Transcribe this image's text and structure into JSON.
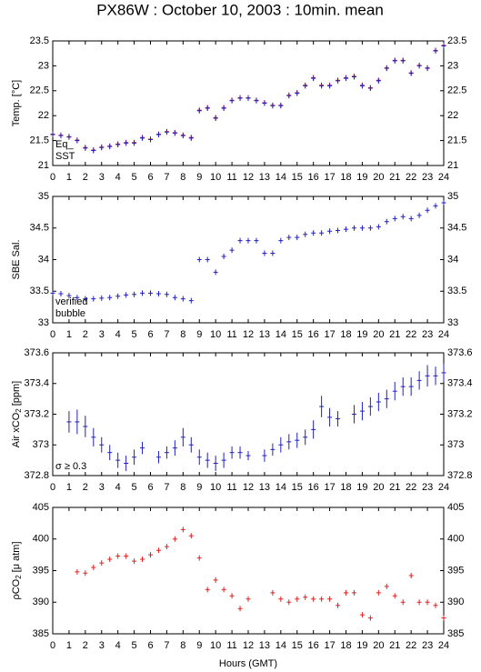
{
  "title": "PX86W : October 10, 2003 : 10min. mean",
  "x_label": "Hours (GMT)",
  "chart_data": [
    {
      "type": "scatter",
      "y_label": "Temp. [°C]",
      "legend": "lower left",
      "x": [
        0,
        0.5,
        1,
        1.5,
        2,
        2.5,
        3,
        3.5,
        4,
        4.5,
        5,
        5.5,
        6,
        6.5,
        7,
        7.5,
        8,
        8.5,
        9,
        9.5,
        10,
        10.5,
        11,
        11.5,
        12,
        12.5,
        13,
        13.5,
        14,
        14.5,
        15,
        15.5,
        16,
        16.5,
        17,
        17.5,
        18,
        18.5,
        19,
        19.5,
        20,
        20.5,
        21,
        21.5,
        22,
        22.5,
        23,
        23.5,
        24
      ],
      "xlim": [
        0,
        24
      ],
      "xticks": [
        0,
        1,
        2,
        3,
        4,
        5,
        6,
        7,
        8,
        9,
        10,
        11,
        12,
        13,
        14,
        15,
        16,
        17,
        18,
        19,
        20,
        21,
        22,
        23,
        24
      ],
      "ylim": [
        21,
        23.5
      ],
      "yticks": [
        21,
        21.5,
        22,
        22.5,
        23,
        23.5
      ],
      "series": [
        {
          "name": "Eq_",
          "color": "#e02020",
          "values": [
            21.63,
            21.61,
            21.58,
            21.51,
            21.36,
            21.31,
            21.37,
            21.39,
            21.43,
            21.46,
            21.46,
            21.56,
            21.53,
            21.63,
            21.68,
            21.66,
            21.61,
            21.56,
            22.11,
            22.16,
            21.96,
            22.16,
            22.31,
            22.36,
            22.36,
            22.31,
            22.26,
            22.21,
            22.21,
            22.41,
            22.46,
            22.61,
            22.76,
            22.61,
            22.61,
            22.71,
            22.76,
            22.79,
            22.61,
            22.56,
            22.71,
            22.96,
            23.11,
            23.11,
            22.86,
            23.01,
            22.96,
            23.31,
            23.41
          ]
        },
        {
          "name": "SST",
          "color": "#2020c0",
          "values": [
            21.62,
            21.6,
            21.57,
            21.5,
            21.35,
            21.3,
            21.36,
            21.38,
            21.42,
            21.45,
            21.45,
            21.55,
            21.52,
            21.62,
            21.67,
            21.65,
            21.6,
            21.55,
            22.1,
            22.15,
            21.95,
            22.15,
            22.3,
            22.35,
            22.35,
            22.3,
            22.25,
            22.2,
            22.2,
            22.4,
            22.45,
            22.6,
            22.75,
            22.6,
            22.6,
            22.7,
            22.75,
            22.78,
            22.6,
            22.55,
            22.7,
            22.95,
            23.1,
            23.1,
            22.85,
            23.0,
            22.95,
            23.3,
            23.4
          ]
        }
      ]
    },
    {
      "type": "scatter",
      "y_label": "SBE Sal.",
      "legend": "lower left",
      "x": [
        0,
        0.5,
        1,
        1.5,
        2,
        2.5,
        3,
        3.5,
        4,
        4.5,
        5,
        5.5,
        6,
        6.5,
        7,
        7.5,
        8,
        8.5,
        9,
        9.5,
        10,
        10.5,
        11,
        11.5,
        12,
        12.5,
        13,
        13.5,
        14,
        14.5,
        15,
        15.5,
        16,
        16.5,
        17,
        17.5,
        18,
        18.5,
        19,
        19.5,
        20,
        20.5,
        21,
        21.5,
        22,
        22.5,
        23,
        23.5,
        24
      ],
      "xlim": [
        0,
        24
      ],
      "xticks": [
        0,
        1,
        2,
        3,
        4,
        5,
        6,
        7,
        8,
        9,
        10,
        11,
        12,
        13,
        14,
        15,
        16,
        17,
        18,
        19,
        20,
        21,
        22,
        23,
        24
      ],
      "ylim": [
        33,
        35
      ],
      "yticks": [
        33,
        33.5,
        34,
        34.5,
        35
      ],
      "series": [
        {
          "name": "verified",
          "color": "#2020c0",
          "values": [
            33.47,
            33.46,
            33.43,
            33.4,
            33.38,
            33.38,
            33.39,
            33.4,
            33.42,
            33.44,
            33.45,
            33.47,
            33.47,
            33.46,
            33.45,
            33.4,
            33.38,
            33.35,
            34.0,
            34.0,
            33.8,
            34.05,
            34.15,
            34.3,
            34.3,
            34.3,
            34.1,
            34.1,
            34.3,
            34.35,
            34.35,
            34.4,
            34.42,
            34.42,
            34.45,
            34.46,
            34.48,
            34.5,
            34.5,
            34.5,
            34.52,
            34.6,
            34.65,
            34.68,
            34.65,
            34.7,
            34.78,
            34.85,
            34.9
          ]
        }
      ],
      "annotations": [
        {
          "text": "bubble",
          "color": "#cc00cc"
        }
      ]
    },
    {
      "type": "errorbar",
      "y_label": [
        "Air xCO",
        "2",
        "[ppm]"
      ],
      "legend": "lower left",
      "x": [
        0,
        0.5,
        1,
        1.5,
        2,
        2.5,
        3,
        3.5,
        4,
        4.5,
        5,
        5.5,
        6,
        6.5,
        7,
        7.5,
        8,
        8.5,
        9,
        9.5,
        10,
        10.5,
        11,
        11.5,
        12,
        12.5,
        13,
        13.5,
        14,
        14.5,
        15,
        15.5,
        16,
        16.5,
        17,
        17.5,
        18,
        18.5,
        19,
        19.5,
        20,
        20.5,
        21,
        21.5,
        22,
        22.5,
        23,
        23.5,
        24
      ],
      "xlim": [
        0,
        24
      ],
      "xticks": [
        0,
        1,
        2,
        3,
        4,
        5,
        6,
        7,
        8,
        9,
        10,
        11,
        12,
        13,
        14,
        15,
        16,
        17,
        18,
        19,
        20,
        21,
        22,
        23,
        24
      ],
      "ylim": [
        372.8,
        373.6
      ],
      "yticks": [
        372.8,
        373,
        373.2,
        373.4,
        373.6
      ],
      "series": [
        {
          "name": null,
          "color": "#2020c0",
          "values": [
            null,
            null,
            373.15,
            373.15,
            373.12,
            373.05,
            373.0,
            372.95,
            372.9,
            372.88,
            372.92,
            372.98,
            null,
            372.92,
            372.95,
            372.98,
            373.05,
            373.0,
            372.92,
            372.9,
            372.88,
            372.9,
            372.95,
            372.95,
            372.93,
            null,
            372.93,
            372.97,
            373.0,
            373.02,
            373.03,
            373.05,
            373.1,
            373.25,
            373.18,
            373.17,
            null,
            373.2,
            373.22,
            373.25,
            373.28,
            373.3,
            373.35,
            373.38,
            373.38,
            373.42,
            373.45,
            373.45,
            373.47
          ],
          "errors": [
            null,
            null,
            0.07,
            0.08,
            0.07,
            0.06,
            0.05,
            0.05,
            0.05,
            0.05,
            0.05,
            0.04,
            null,
            0.04,
            0.04,
            0.05,
            0.06,
            0.05,
            0.05,
            0.05,
            0.05,
            0.05,
            0.04,
            0.04,
            0.03,
            null,
            0.04,
            0.04,
            0.05,
            0.05,
            0.05,
            0.05,
            0.06,
            0.07,
            0.06,
            0.05,
            null,
            0.06,
            0.06,
            0.06,
            0.06,
            0.06,
            0.06,
            0.06,
            0.06,
            0.06,
            0.07,
            0.06,
            0.06
          ]
        }
      ],
      "annotations": [
        {
          "text": "σ ≥ 0.3",
          "color": "#cc00cc"
        }
      ]
    },
    {
      "type": "scatter",
      "y_label": [
        "ρCO",
        "2",
        "[μ atm]"
      ],
      "x": [
        0,
        0.5,
        1,
        1.5,
        2,
        2.5,
        3,
        3.5,
        4,
        4.5,
        5,
        5.5,
        6,
        6.5,
        7,
        7.5,
        8,
        8.5,
        9,
        9.5,
        10,
        10.5,
        11,
        11.5,
        12,
        12.5,
        13,
        13.5,
        14,
        14.5,
        15,
        15.5,
        16,
        16.5,
        17,
        17.5,
        18,
        18.5,
        19,
        19.5,
        20,
        20.5,
        21,
        21.5,
        22,
        22.5,
        23,
        23.5,
        24
      ],
      "xlim": [
        0,
        24
      ],
      "xticks": [
        0,
        1,
        2,
        3,
        4,
        5,
        6,
        7,
        8,
        9,
        10,
        11,
        12,
        13,
        14,
        15,
        16,
        17,
        18,
        19,
        20,
        21,
        22,
        23,
        24
      ],
      "ylim": [
        385,
        405
      ],
      "yticks": [
        385,
        390,
        395,
        400,
        405
      ],
      "series": [
        {
          "name": null,
          "color": "#e02020",
          "values": [
            null,
            null,
            null,
            394.8,
            394.6,
            395.5,
            396.2,
            396.8,
            397.3,
            397.3,
            396.5,
            396.8,
            397.5,
            398.2,
            398.8,
            400.0,
            401.5,
            400.5,
            397.0,
            392,
            393.5,
            392,
            391,
            389,
            390.5,
            null,
            null,
            391.5,
            390.5,
            390.0,
            390.5,
            390.8,
            390.5,
            390.5,
            390.5,
            389.5,
            391.5,
            391.5,
            388,
            387.5,
            391.5,
            392.5,
            391,
            390,
            394.2,
            390,
            390,
            389.5,
            387.5
          ]
        }
      ]
    }
  ]
}
